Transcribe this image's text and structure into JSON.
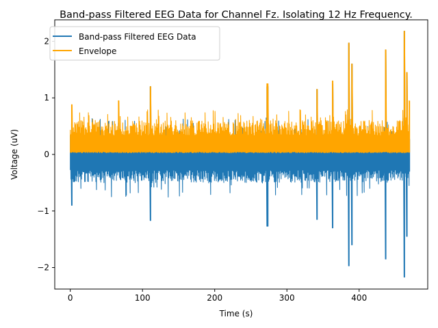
{
  "chart_data": {
    "type": "line",
    "title": "Band-pass Filtered EEG Data for Channel Fz. Isolating 12 Hz Frequency.",
    "xlabel": "Time (s)",
    "ylabel": "Voltage (uV)",
    "xlim": [
      -21.5,
      495
    ],
    "ylim": [
      -2.38,
      2.38
    ],
    "xticks": [
      0,
      100,
      200,
      300,
      400
    ],
    "yticks": [
      -2,
      -1,
      0,
      1,
      2
    ],
    "xtick_labels": [
      "0",
      "100",
      "200",
      "300",
      "400"
    ],
    "ytick_labels": [
      "−2",
      "−1",
      "0",
      "1",
      "2"
    ],
    "grid": false,
    "legend": "top-left",
    "series": [
      {
        "name": "Band-pass Filtered EEG Data",
        "color": "#1f77b4",
        "x_range": [
          0,
          470
        ],
        "typical_range": [
          -0.5,
          0.35
        ],
        "peaks": [
          {
            "x": 2,
            "y": 0.55
          },
          {
            "x": 2,
            "y": -0.9
          },
          {
            "x": 111,
            "y": -1.17
          },
          {
            "x": 111,
            "y": 1.2
          },
          {
            "x": 273,
            "y": -1.27
          },
          {
            "x": 273,
            "y": 1.2
          },
          {
            "x": 342,
            "y": -1.15
          },
          {
            "x": 342,
            "y": 1.15
          },
          {
            "x": 363,
            "y": -1.3
          },
          {
            "x": 363,
            "y": 1.25
          },
          {
            "x": 386,
            "y": -1.97
          },
          {
            "x": 386,
            "y": 1.97
          },
          {
            "x": 390,
            "y": -1.6
          },
          {
            "x": 390,
            "y": 1.6
          },
          {
            "x": 437,
            "y": -1.85
          },
          {
            "x": 437,
            "y": 1.85
          },
          {
            "x": 463,
            "y": -2.17
          },
          {
            "x": 463,
            "y": 2.18
          },
          {
            "x": 466,
            "y": -1.45
          },
          {
            "x": 466,
            "y": 1.45
          }
        ]
      },
      {
        "name": "Envelope",
        "color": "#ffa500",
        "x_range": [
          0,
          470
        ],
        "typical_range": [
          0.05,
          0.6
        ],
        "peaks": [
          {
            "x": 2,
            "y": 0.88
          },
          {
            "x": 67,
            "y": 0.95
          },
          {
            "x": 111,
            "y": 1.2
          },
          {
            "x": 273,
            "y": 1.25
          },
          {
            "x": 342,
            "y": 1.15
          },
          {
            "x": 363,
            "y": 1.3
          },
          {
            "x": 386,
            "y": 1.97
          },
          {
            "x": 390,
            "y": 1.6
          },
          {
            "x": 437,
            "y": 1.85
          },
          {
            "x": 463,
            "y": 2.18
          },
          {
            "x": 466,
            "y": 1.45
          },
          {
            "x": 470,
            "y": 0.95
          }
        ]
      }
    ]
  }
}
